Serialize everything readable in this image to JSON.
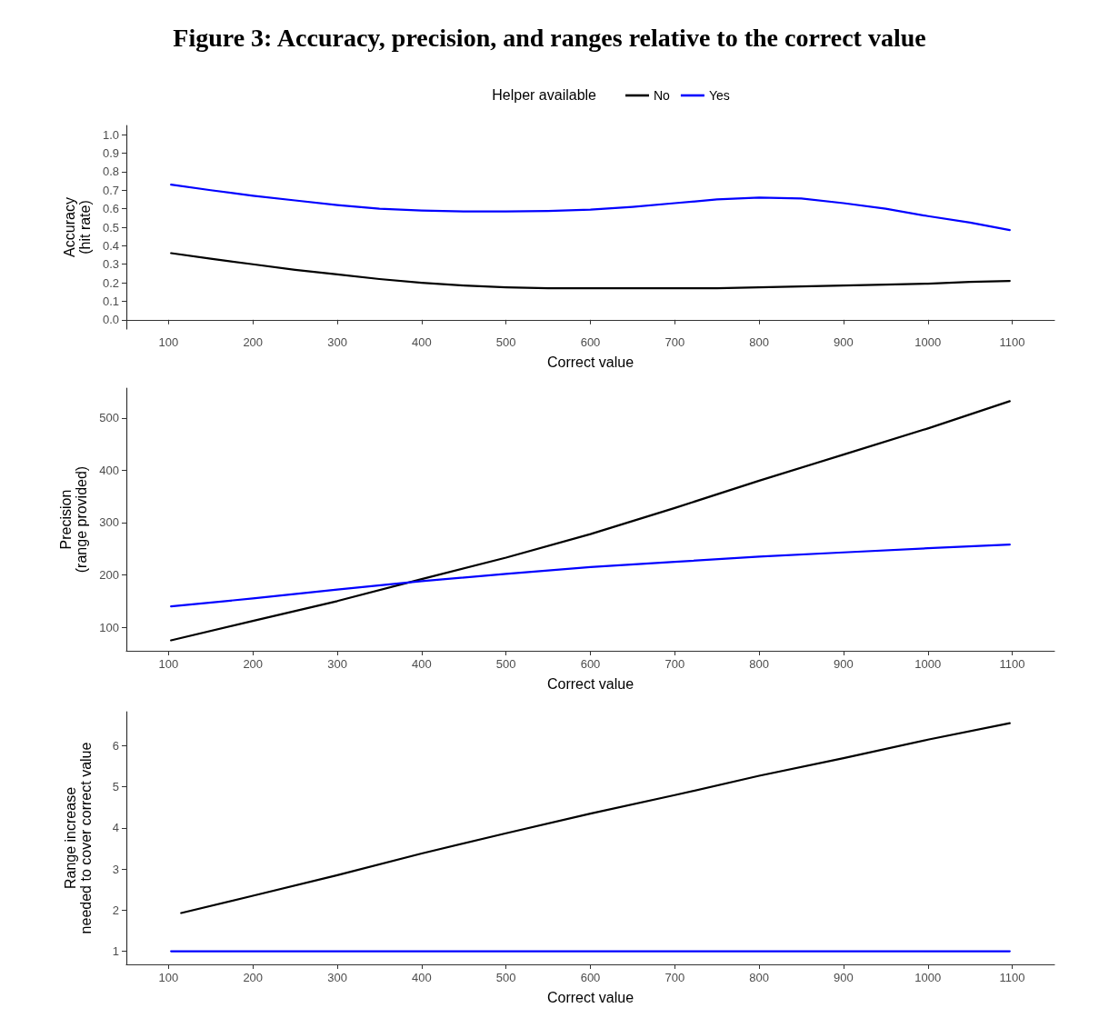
{
  "chart_data": [
    {
      "type": "line",
      "title": "Figure 3: Accuracy, precision, and ranges relative to the correct value",
      "legend_title": "Helper available",
      "legend": "top",
      "xlabel": "Correct value",
      "ylabel": "Accuracy\n(hit rate)",
      "marker": "none",
      "line_style": "solid",
      "grid": false,
      "xlim": [
        50,
        1150
      ],
      "xticks": [
        100,
        200,
        300,
        400,
        500,
        600,
        700,
        800,
        900,
        1000,
        1100
      ],
      "ylim": [
        -0.05,
        1.05
      ],
      "yticks": [
        {
          "value": 0,
          "label": "0.0"
        },
        0.1,
        0.2,
        0.3,
        0.4,
        0.5,
        0.6,
        0.7,
        0.8,
        0.9,
        {
          "value": 1,
          "label": "1.0"
        }
      ],
      "series": [
        {
          "name": "No",
          "color": "#000000",
          "x": [
            103,
            150,
            200,
            250,
            300,
            350,
            400,
            450,
            500,
            550,
            600,
            650,
            700,
            750,
            800,
            850,
            900,
            950,
            1000,
            1050,
            1097
          ],
          "values": [
            0.36,
            0.33,
            0.3,
            0.27,
            0.245,
            0.22,
            0.2,
            0.185,
            0.175,
            0.17,
            0.17,
            0.17,
            0.17,
            0.17,
            0.175,
            0.18,
            0.185,
            0.19,
            0.195,
            0.205,
            0.21
          ]
        },
        {
          "name": "Yes",
          "color": "#0000ff",
          "x": [
            103,
            150,
            200,
            250,
            300,
            350,
            400,
            450,
            500,
            550,
            600,
            650,
            700,
            750,
            800,
            850,
            900,
            950,
            1000,
            1050,
            1097
          ],
          "values": [
            0.73,
            0.7,
            0.67,
            0.645,
            0.62,
            0.6,
            0.59,
            0.585,
            0.585,
            0.588,
            0.595,
            0.61,
            0.63,
            0.65,
            0.66,
            0.655,
            0.63,
            0.6,
            0.56,
            0.525,
            0.485
          ]
        }
      ]
    },
    {
      "type": "line",
      "xlabel": "Correct value",
      "ylabel": "Precision\n(range provided)",
      "marker": "none",
      "line_style": "solid",
      "grid": false,
      "xlim": [
        50,
        1150
      ],
      "xticks": [
        100,
        200,
        300,
        400,
        500,
        600,
        700,
        800,
        900,
        1000,
        1100
      ],
      "ylim": [
        55,
        557
      ],
      "yticks": [
        100,
        200,
        300,
        400,
        500
      ],
      "series": [
        {
          "color": "#000000",
          "x": [
            103,
            200,
            300,
            400,
            500,
            600,
            700,
            800,
            900,
            1000,
            1097
          ],
          "values": [
            75,
            112,
            150,
            192,
            233,
            278,
            328,
            380,
            430,
            480,
            532
          ]
        },
        {
          "color": "#0000ff",
          "x": [
            103,
            200,
            300,
            400,
            500,
            600,
            700,
            800,
            900,
            1000,
            1097
          ],
          "values": [
            140,
            155,
            172,
            188,
            202,
            215,
            225,
            235,
            243,
            251,
            258
          ]
        }
      ]
    },
    {
      "type": "line",
      "xlabel": "Correct value",
      "ylabel": "Range increase\nneeded to cover correct value",
      "marker": "none",
      "line_style": "solid",
      "grid": false,
      "xlim": [
        50,
        1150
      ],
      "xticks": [
        100,
        200,
        300,
        400,
        500,
        600,
        700,
        800,
        900,
        1000,
        1100
      ],
      "ylim": [
        0.68,
        6.83
      ],
      "yticks": [
        1,
        2,
        3,
        4,
        5,
        6
      ],
      "series": [
        {
          "color": "#000000",
          "x": [
            115,
            200,
            300,
            400,
            500,
            600,
            700,
            800,
            900,
            1000,
            1097
          ],
          "values": [
            1.93,
            2.35,
            2.85,
            3.38,
            3.87,
            4.35,
            4.8,
            5.27,
            5.7,
            6.15,
            6.55
          ]
        },
        {
          "color": "#0000ff",
          "x": [
            103,
            1097
          ],
          "values": [
            1,
            1
          ]
        }
      ]
    }
  ]
}
